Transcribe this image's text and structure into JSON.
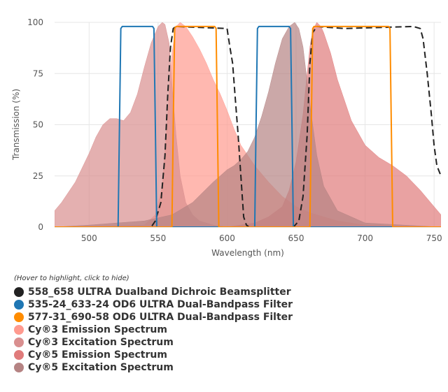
{
  "chart_data": {
    "type": "area",
    "xlabel": "Wavelength (nm)",
    "ylabel": "Transmission (%)",
    "xlim": [
      475,
      755
    ],
    "ylim": [
      0,
      100
    ],
    "xticks": [
      500,
      550,
      600,
      650,
      700,
      750
    ],
    "yticks": [
      0,
      25,
      50,
      75,
      100
    ],
    "grid": true,
    "legend_position": "bottom",
    "legend_hint": "(Hover to highlight, click to hide)",
    "series": [
      {
        "name": "558_658 ULTRA Dualband Dichroic Beamsplitter",
        "style": "dashed-line",
        "color": "#222222",
        "x": [
          475,
          545,
          548,
          552,
          555,
          557,
          559,
          561,
          563,
          600,
          602,
          604,
          606,
          608,
          610,
          612,
          614,
          616,
          618,
          620,
          640,
          648,
          652,
          655,
          658,
          660,
          662,
          665,
          685,
          735,
          740,
          742,
          745,
          748,
          750,
          752,
          755
        ],
        "y": [
          0,
          0,
          3,
          12,
          35,
          65,
          88,
          97,
          98,
          97,
          88,
          80,
          62,
          45,
          25,
          5,
          1,
          0,
          0,
          0,
          0,
          0,
          3,
          15,
          45,
          80,
          95,
          98,
          97,
          98,
          97,
          92,
          75,
          55,
          40,
          30,
          25
        ]
      },
      {
        "name": "535-24_633-24 OD6 ULTRA Dual-Bandpass Filter",
        "style": "line",
        "color": "#1f77b4",
        "x": [
          475,
          521,
          522,
          523,
          524,
          546,
          547,
          548,
          549,
          620,
          621,
          622,
          623,
          645,
          646,
          647,
          648,
          755
        ],
        "y": [
          0,
          0,
          50,
          97,
          98,
          98,
          97,
          50,
          0,
          0,
          50,
          97,
          98,
          98,
          97,
          50,
          0,
          0
        ]
      },
      {
        "name": "577-31_690-58 OD6 ULTRA Dual-Bandpass Filter",
        "style": "line",
        "color": "#ff8c00",
        "x": [
          475,
          560,
          561,
          562,
          563,
          591,
          592,
          593,
          594,
          660,
          661,
          662,
          663,
          717,
          718,
          719,
          720,
          755
        ],
        "y": [
          0,
          0,
          50,
          97,
          98,
          98,
          97,
          50,
          0,
          0,
          50,
          97,
          98,
          98,
          97,
          50,
          0,
          0
        ]
      },
      {
        "name": "Cy®3 Emission Spectrum",
        "style": "area",
        "color": "#ff9a8f",
        "x": [
          475,
          540,
          548,
          553,
          557,
          560,
          563,
          566,
          570,
          575,
          580,
          585,
          590,
          595,
          600,
          605,
          610,
          620,
          630,
          640,
          650,
          660,
          680,
          700,
          755
        ],
        "y": [
          0,
          1,
          6,
          20,
          55,
          85,
          98,
          100,
          98,
          93,
          87,
          80,
          72,
          65,
          57,
          48,
          40,
          30,
          22,
          15,
          10,
          7,
          3,
          1,
          0
        ]
      },
      {
        "name": "Cy®3 Excitation Spectrum",
        "style": "area",
        "color": "#d98f8f",
        "x": [
          475,
          480,
          490,
          500,
          505,
          510,
          515,
          520,
          525,
          530,
          535,
          540,
          545,
          550,
          553,
          555,
          558,
          560,
          563,
          566,
          570,
          575,
          580,
          590,
          600,
          620,
          640,
          755
        ],
        "y": [
          8,
          12,
          22,
          36,
          44,
          50,
          53,
          53,
          52,
          56,
          65,
          78,
          90,
          98,
          100,
          99,
          90,
          70,
          45,
          25,
          12,
          6,
          3,
          1,
          0,
          0,
          0,
          0
        ]
      },
      {
        "name": "Cy®5 Emission Spectrum",
        "style": "area",
        "color": "#e07b7b",
        "x": [
          475,
          600,
          620,
          630,
          640,
          645,
          650,
          655,
          658,
          660,
          662,
          665,
          668,
          670,
          675,
          680,
          690,
          700,
          710,
          720,
          730,
          740,
          750,
          755
        ],
        "y": [
          0,
          0,
          2,
          5,
          10,
          18,
          32,
          55,
          75,
          88,
          96,
          100,
          98,
          95,
          85,
          72,
          52,
          40,
          34,
          30,
          25,
          18,
          10,
          6
        ]
      },
      {
        "name": "Cy®5 Excitation Spectrum",
        "style": "area",
        "color": "#b58383",
        "x": [
          475,
          500,
          520,
          540,
          560,
          575,
          590,
          600,
          605,
          610,
          615,
          620,
          625,
          630,
          635,
          640,
          645,
          649,
          652,
          655,
          660,
          665,
          670,
          680,
          700,
          755
        ],
        "y": [
          0,
          1,
          2,
          3,
          6,
          12,
          22,
          28,
          30,
          33,
          37,
          44,
          54,
          66,
          80,
          92,
          98,
          100,
          97,
          88,
          60,
          35,
          20,
          8,
          2,
          0
        ]
      }
    ]
  }
}
